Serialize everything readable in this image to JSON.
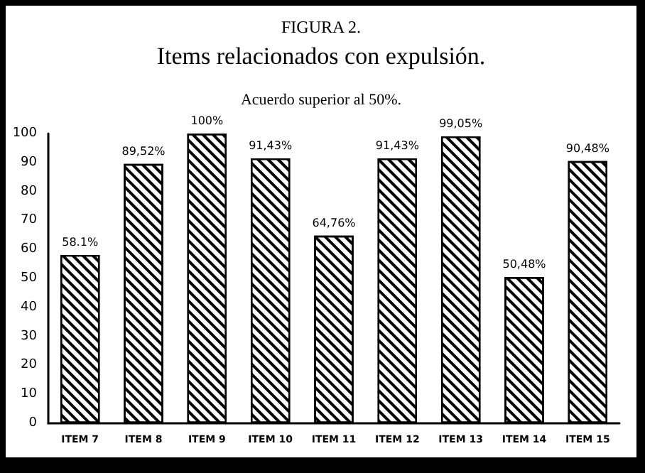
{
  "chart_data": {
    "type": "bar",
    "title": "FIGURA 2.",
    "subtitle": "Items relacionados con expulsión.",
    "annotations": [
      "Acuerdo superior al 50%."
    ],
    "categories": [
      "ITEM 7",
      "ITEM 8",
      "ITEM 9",
      "ITEM 10",
      "ITEM 11",
      "ITEM 12",
      "ITEM 13",
      "ITEM 14",
      "ITEM 15"
    ],
    "values": [
      58.1,
      89.52,
      100,
      91.43,
      64.76,
      91.43,
      99.05,
      50.48,
      90.48
    ],
    "value_labels": [
      "58.1%",
      "89,52%",
      "100%",
      "91,43%",
      "64,76%",
      "91,43%",
      "99,05%",
      "50,48%",
      "90,48%"
    ],
    "color": "#ffffff",
    "ylim": [
      0,
      100
    ],
    "yticks": [
      0,
      10,
      20,
      30,
      40,
      50,
      60,
      70,
      80,
      90,
      100
    ],
    "grid": false
  }
}
